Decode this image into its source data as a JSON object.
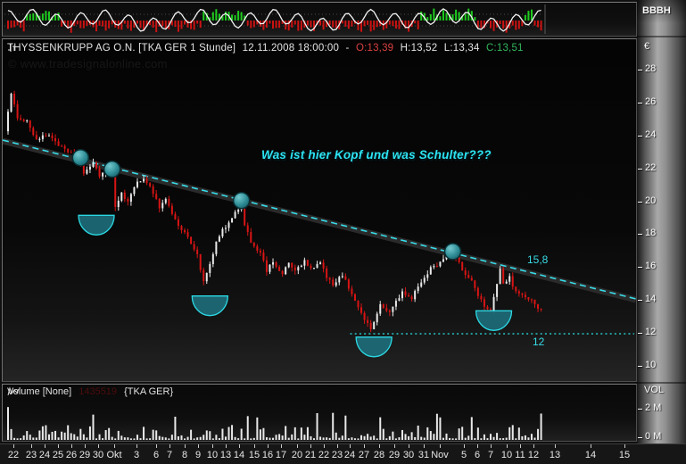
{
  "indicator_panel": {
    "axis_label": "BBBH"
  },
  "main_chart": {
    "title": {
      "symbol": "THYSSENKRUPP AG O.N. [TKA GER 1 Stunde]",
      "datetime": "12.11.2008 18:00:00",
      "separator": "-",
      "open": "O:13,39",
      "high": "H:13,52",
      "low": "L:13,34",
      "close": "C:13,51"
    },
    "watermark": "© www.tradesignalonline.com",
    "annotation": "Was ist hier Kopf und was Schulter???",
    "trendline_label": "15,8",
    "support_label": "12",
    "currency_label": "€"
  },
  "volume_panel": {
    "title": "Volume [None]",
    "value": "1435519",
    "symbol": "{TKA GER}",
    "axis_label": "VOL"
  },
  "colors": {
    "accent_cyan": "#38dce8",
    "candle_up": "#e9e9e9",
    "candle_down": "#d81414",
    "osc_up": "#1ecb1e",
    "osc_down": "#cc1212",
    "osc_line": "#f2f2f2",
    "volume_bar": "#e9e9e9",
    "open_value": "#d84040",
    "close_value": "#33b45c",
    "marker_fill": "#2f8d96",
    "arc_fill": "#1d6b78",
    "trend_band": "#2a2a2a"
  },
  "x_axis": {
    "labels": [
      [
        "22",
        15
      ],
      [
        "23",
        35
      ],
      [
        "24",
        50
      ],
      [
        "25",
        65
      ],
      [
        "26",
        80
      ],
      [
        "29",
        95
      ],
      [
        "30",
        110
      ],
      [
        "Okt",
        128
      ],
      [
        "3",
        153
      ],
      [
        "6",
        175
      ],
      [
        "7",
        190
      ],
      [
        "8",
        207
      ],
      [
        "9",
        222
      ],
      [
        "10",
        238
      ],
      [
        "13",
        253
      ],
      [
        "14",
        268
      ],
      [
        "15",
        285
      ],
      [
        "16",
        300
      ],
      [
        "17",
        315
      ],
      [
        "20",
        333
      ],
      [
        "21",
        348
      ],
      [
        "22",
        363
      ],
      [
        "23",
        378
      ],
      [
        "24",
        392
      ],
      [
        "27",
        408
      ],
      [
        "28",
        425
      ],
      [
        "29",
        442
      ],
      [
        "30",
        458
      ],
      [
        "31",
        475
      ],
      [
        "Nov",
        493
      ],
      [
        "5",
        520
      ],
      [
        "6",
        535
      ],
      [
        "7",
        550
      ],
      [
        "10",
        568
      ],
      [
        "11",
        583
      ],
      [
        "12",
        598
      ],
      [
        "13",
        622
      ],
      [
        "14",
        662
      ],
      [
        "15",
        700
      ]
    ]
  },
  "chart_data": {
    "type": "candlestick",
    "instrument": "THYSSENKRUPP AG O.N.",
    "symbol": "TKA GER",
    "timeframe": "1 Stunde",
    "last_bar": {
      "date": "12.11.2008",
      "time": "18:00:00",
      "open": 13.39,
      "high": 13.52,
      "low": 13.34,
      "close": 13.51,
      "volume": 1435519
    },
    "y_axis": {
      "currency": "€",
      "ticks": [
        28,
        26,
        24,
        22,
        20,
        18,
        16,
        14,
        12,
        10
      ],
      "min": 9.3,
      "max": 28.9
    },
    "volume_axis": {
      "label": "VOL",
      "ticks": [
        [
          "2 M",
          2
        ],
        [
          "0 M",
          0
        ]
      ]
    },
    "n_candles": 170,
    "price_path_anchors": [
      [
        0,
        24.4
      ],
      [
        2,
        26.5
      ],
      [
        4,
        25.2
      ],
      [
        7,
        24.9
      ],
      [
        10,
        23.8
      ],
      [
        14,
        24.1
      ],
      [
        18,
        23.3
      ],
      [
        21,
        22.9
      ],
      [
        23,
        22.6
      ],
      [
        25,
        21.8
      ],
      [
        28,
        22.3
      ],
      [
        30,
        21.6
      ],
      [
        32,
        22.1
      ],
      [
        34,
        21.8
      ],
      [
        35,
        19.6
      ],
      [
        37,
        20.6
      ],
      [
        39,
        20.0
      ],
      [
        42,
        21.2
      ],
      [
        44,
        21.5
      ],
      [
        47,
        20.6
      ],
      [
        49,
        19.7
      ],
      [
        51,
        20.2
      ],
      [
        54,
        18.9
      ],
      [
        56,
        18.3
      ],
      [
        58,
        17.9
      ],
      [
        61,
        16.8
      ],
      [
        63,
        15.1
      ],
      [
        65,
        16.2
      ],
      [
        67,
        17.5
      ],
      [
        69,
        18.3
      ],
      [
        71,
        18.7
      ],
      [
        73,
        19.3
      ],
      [
        75,
        19.6
      ],
      [
        76,
        18.7
      ],
      [
        78,
        17.6
      ],
      [
        81,
        16.9
      ],
      [
        83,
        15.8
      ],
      [
        85,
        16.4
      ],
      [
        88,
        15.6
      ],
      [
        90,
        16.3
      ],
      [
        92,
        15.8
      ],
      [
        95,
        16.4
      ],
      [
        97,
        15.9
      ],
      [
        100,
        16.3
      ],
      [
        102,
        15.5
      ],
      [
        104,
        14.9
      ],
      [
        107,
        15.6
      ],
      [
        109,
        14.8
      ],
      [
        111,
        14.1
      ],
      [
        113,
        13.2
      ],
      [
        116,
        12.3
      ],
      [
        117,
        12.8
      ],
      [
        119,
        13.7
      ],
      [
        122,
        13.3
      ],
      [
        124,
        14.0
      ],
      [
        126,
        14.5
      ],
      [
        129,
        14.1
      ],
      [
        131,
        14.9
      ],
      [
        133,
        15.4
      ],
      [
        135,
        16.0
      ],
      [
        138,
        16.3
      ],
      [
        140,
        16.9
      ],
      [
        142,
        17.2
      ],
      [
        143,
        16.6
      ],
      [
        145,
        15.9
      ],
      [
        148,
        15.2
      ],
      [
        150,
        14.4
      ],
      [
        152,
        13.7
      ],
      [
        154,
        13.4
      ],
      [
        156,
        15.0
      ],
      [
        157,
        15.9
      ],
      [
        158,
        15.1
      ],
      [
        160,
        15.4
      ],
      [
        161,
        14.8
      ],
      [
        164,
        14.4
      ],
      [
        166,
        14.2
      ],
      [
        168,
        13.8
      ],
      [
        169,
        13.5
      ]
    ],
    "trendline": {
      "style": "cyan-dashed",
      "start_price": 23.7,
      "end_price": 14.1,
      "label": "15,8"
    },
    "support_line": {
      "style": "cyan-dotted",
      "price": 12,
      "label": "12",
      "start_index": 111
    },
    "trendline_touch_circles": [
      {
        "index": 23,
        "price": 22.7
      },
      {
        "index": 33,
        "price": 22.0
      },
      {
        "index": 74,
        "price": 20.1
      },
      {
        "index": 141,
        "price": 17.0
      }
    ],
    "shoulder_arcs": [
      {
        "index": 28,
        "top_price": 19.2
      },
      {
        "index": 64,
        "top_price": 14.3
      },
      {
        "index": 116,
        "top_price": 11.8
      },
      {
        "index": 154,
        "top_price": 13.4
      }
    ],
    "annotation": "Was ist hier Kopf und was Schulter???",
    "oscillator": {
      "name": "BBBH",
      "green_zones": [
        [
          6,
          16
        ],
        [
          62,
          75
        ],
        [
          131,
          148
        ],
        [
          164,
          166
        ]
      ]
    }
  }
}
